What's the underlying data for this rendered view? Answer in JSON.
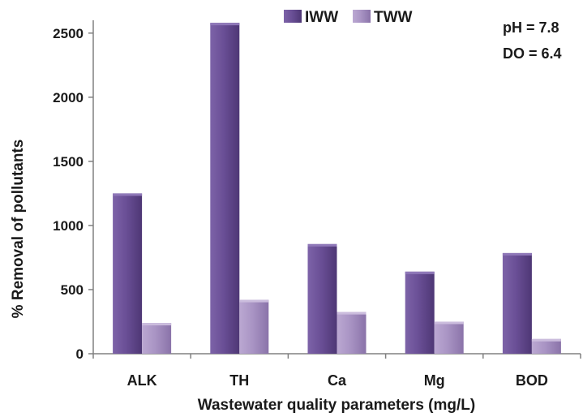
{
  "chart_data": {
    "type": "bar",
    "categories": [
      "ALK",
      "TH",
      "Ca",
      "Mg",
      "BOD"
    ],
    "series": [
      {
        "name": "IWW",
        "values": [
          1250,
          2580,
          855,
          640,
          785
        ],
        "color": "#6a4f96"
      },
      {
        "name": "TWW",
        "values": [
          240,
          420,
          325,
          250,
          115
        ],
        "color": "#a994c4"
      }
    ],
    "title": "",
    "xlabel": "Wastewater quality parameters (mg/L)",
    "ylabel": "% Removal of pollutants",
    "ylim": [
      0,
      2600
    ],
    "yticks": [
      0,
      500,
      1000,
      1500,
      2000,
      2500
    ],
    "grid": false,
    "legend_position": "top-center",
    "annotations": [
      "pH = 7.8",
      "DO = 6.4"
    ]
  }
}
